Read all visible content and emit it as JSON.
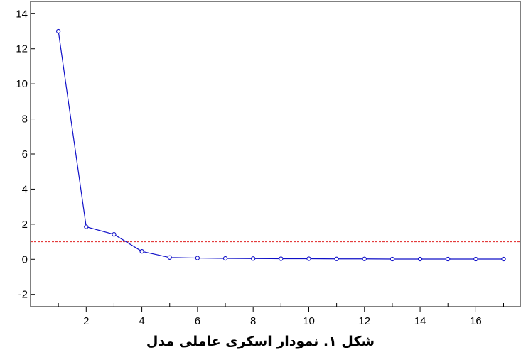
{
  "caption": "شکل ۱. نمودار اسکری عاملی مدل",
  "colors": {
    "line": "#1010c8",
    "reference": "#e02020",
    "axis": "#000000"
  },
  "chart_data": {
    "type": "line",
    "x": [
      1,
      2,
      3,
      4,
      5,
      6,
      7,
      8,
      9,
      10,
      11,
      12,
      13,
      14,
      15,
      16,
      17
    ],
    "series": [
      {
        "values": [
          13.0,
          1.85,
          1.42,
          0.45,
          0.1,
          0.07,
          0.05,
          0.04,
          0.03,
          0.03,
          0.02,
          0.02,
          0.01,
          0.01,
          0.01,
          0.01,
          0.01
        ]
      }
    ],
    "reference_line": {
      "y": 1.0,
      "style": "dashed"
    },
    "xlim": [
      0,
      17.6
    ],
    "ylim": [
      -2.7,
      14.7
    ],
    "x_ticks": [
      2,
      4,
      6,
      8,
      10,
      12,
      14,
      16
    ],
    "y_ticks": [
      -2,
      0,
      2,
      4,
      6,
      8,
      10,
      12,
      14
    ],
    "x_tick_labels": [
      "2",
      "4",
      "6",
      "8",
      "10",
      "12",
      "14",
      "16"
    ],
    "y_tick_labels": [
      "-2",
      "0",
      "2",
      "4",
      "6",
      "8",
      "10",
      "12",
      "14"
    ],
    "grid": false,
    "markers": "hollow-circle"
  }
}
